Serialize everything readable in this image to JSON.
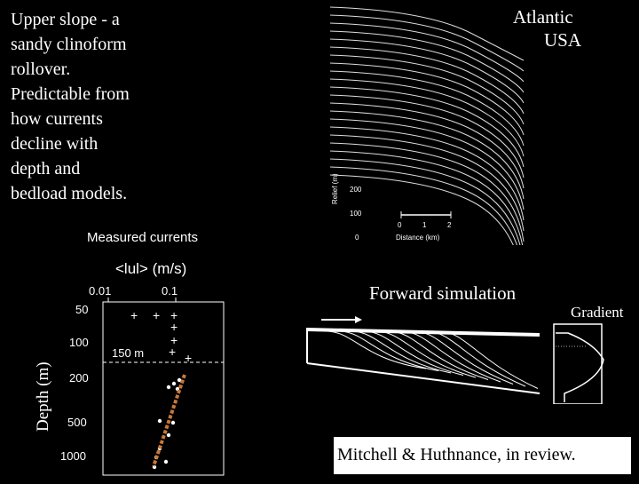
{
  "main_text": {
    "lines": [
      "Upper slope - a",
      "sandy clinoform",
      "rollover.",
      "Predictable from",
      "how currents",
      "decline with",
      "depth and",
      "bedload models."
    ]
  },
  "seismic": {
    "title_line1": "Atlantic",
    "title_line2": "USA",
    "relief_label": "Relief (m)",
    "relief_ticks": [
      "200",
      "100",
      "0"
    ],
    "distance_label": "Distance (km)",
    "distance_ticks": [
      "0",
      "1",
      "2"
    ]
  },
  "currents": {
    "title": "Measured currents",
    "units": "<lul> (m/s)",
    "x_ticks": [
      "0.01",
      "0.1"
    ],
    "y_label": "Depth (m)",
    "y_ticks": [
      "50",
      "100",
      "200",
      "500",
      "1000"
    ],
    "marker_150": "150 m"
  },
  "simulation": {
    "label": "Forward simulation",
    "gradient_label": "Gradient"
  },
  "citation": "Mitchell & Huthnance, in review."
}
